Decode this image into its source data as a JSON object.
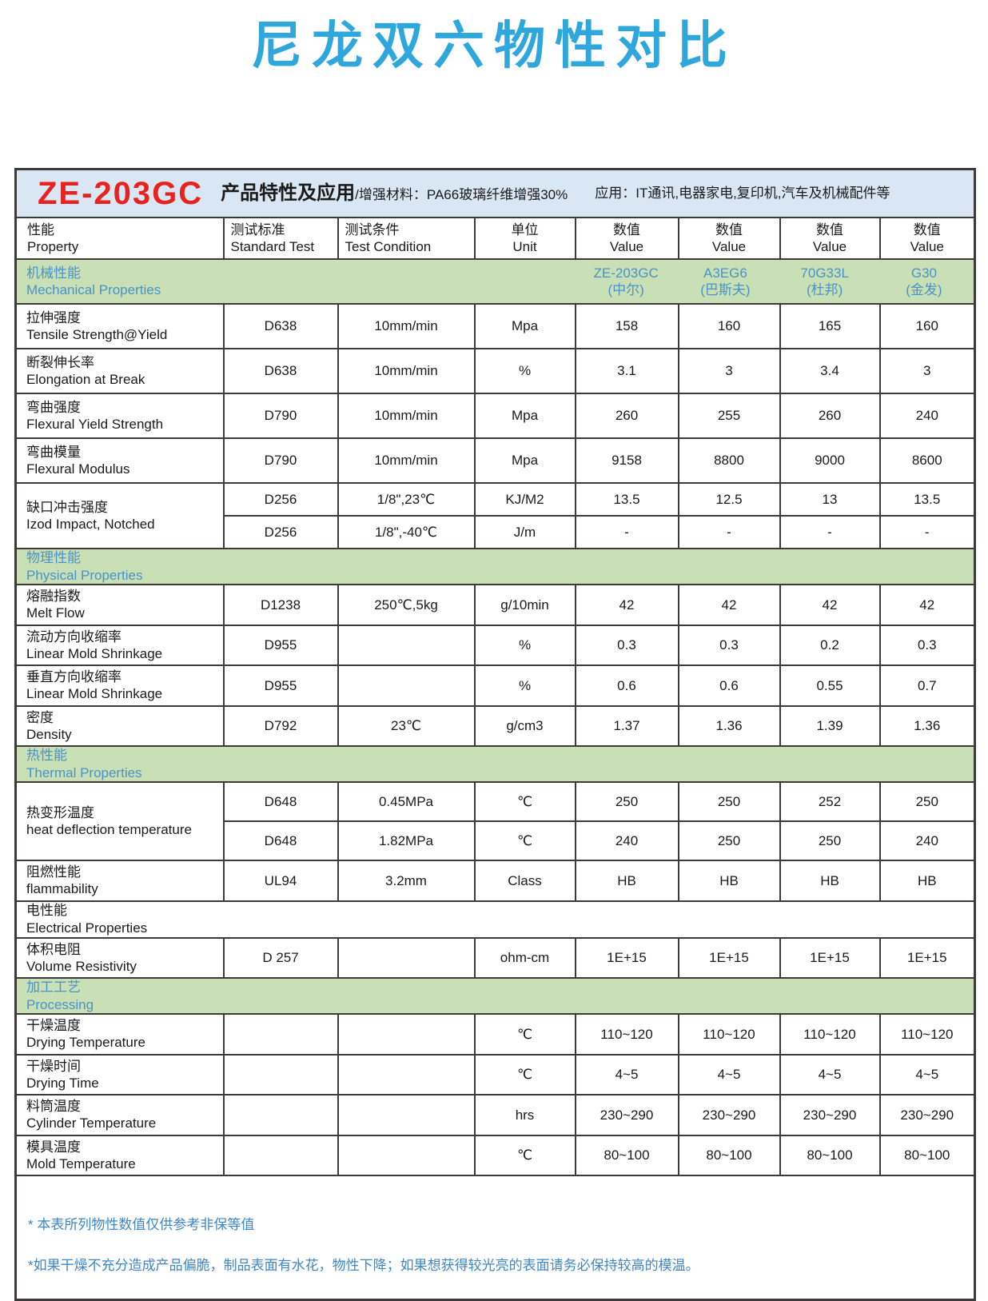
{
  "colors": {
    "title_blue": "#2ea7dc",
    "product_code_red": "#e8231f",
    "product_band_blue_bg": "#d9e6f4",
    "section_band_green_bg": "#c9dfb5",
    "section_text_blue": "#4a93c8",
    "note_text_blue": "#3f86c4",
    "grid_border": "#3e3a39"
  },
  "page": {
    "title": "尼龙双六物性对比"
  },
  "product_header": {
    "code": "ZE-203GC",
    "feature_label": "产品特性及应用",
    "feature_detail": "/增强材料：PA66玻璃纤维增强30%",
    "application": "应用：IT通讯,电器家电,复印机,汽车及机械配件等"
  },
  "table": {
    "columns": [
      {
        "zh": "性能",
        "en": "Property"
      },
      {
        "zh": "测试标准",
        "en": "Standard Test"
      },
      {
        "zh": "测试条件",
        "en": "Test Condition"
      },
      {
        "zh": "单位",
        "en": "Unit"
      },
      {
        "zh": "数值",
        "en": "Value"
      },
      {
        "zh": "数值",
        "en": "Value"
      },
      {
        "zh": "数值",
        "en": "Value"
      },
      {
        "zh": "数值",
        "en": "Value"
      }
    ],
    "brands": [
      {
        "name": "ZE-203GC",
        "maker": "(中尔)"
      },
      {
        "name": "A3EG6",
        "maker": "(巴斯夫)"
      },
      {
        "name": "70G33L",
        "maker": "(杜邦)"
      },
      {
        "name": "G30",
        "maker": "(金发)"
      }
    ],
    "sections": [
      {
        "id": "mechanical",
        "zh": "机械性能",
        "en": "Mechanical Properties",
        "style": "green",
        "show_brands": true,
        "rows": [
          {
            "prop_zh": "拉伸强度",
            "prop_en": "Tensile Strength@Yield",
            "std": "D638",
            "cond": "10mm/min",
            "unit": "Mpa",
            "values": [
              "158",
              "160",
              "165",
              "160"
            ]
          },
          {
            "prop_zh": "断裂伸长率",
            "prop_en": "Elongation at Break",
            "std": "D638",
            "cond": "10mm/min",
            "unit": "%",
            "values": [
              "3.1",
              "3",
              "3.4",
              "3"
            ]
          },
          {
            "prop_zh": "弯曲强度",
            "prop_en": "Flexural Yield Strength",
            "std": "D790",
            "cond": "10mm/min",
            "unit": "Mpa",
            "values": [
              "260",
              "255",
              "260",
              "240"
            ]
          },
          {
            "prop_zh": "弯曲模量",
            "prop_en": "Flexural Modulus",
            "std": "D790",
            "cond": "10mm/min",
            "unit": "Mpa",
            "values": [
              "9158",
              "8800",
              "9000",
              "8600"
            ]
          },
          {
            "prop_zh": "缺口冲击强度",
            "prop_en": "Izod Impact, Notched",
            "subrows": [
              {
                "std": "D256",
                "cond": "1/8\",23℃",
                "unit": "KJ/M2",
                "values": [
                  "13.5",
                  "12.5",
                  "13",
                  "13.5"
                ]
              },
              {
                "std": "D256",
                "cond": "1/8\",-40℃",
                "unit": "J/m",
                "values": [
                  "-",
                  "-",
                  "-",
                  "-"
                ]
              }
            ]
          }
        ]
      },
      {
        "id": "physical",
        "zh": "物理性能",
        "en": "Physical Properties",
        "style": "green",
        "show_brands": false,
        "rows": [
          {
            "prop_zh": "熔融指数",
            "prop_en": "Melt Flow",
            "std": "D1238",
            "cond": "250℃,5kg",
            "unit": "g/10min",
            "values": [
              "42",
              "42",
              "42",
              "42"
            ]
          },
          {
            "prop_zh": "流动方向收缩率",
            "prop_en": "Linear Mold Shrinkage",
            "std": "D955",
            "cond": "",
            "unit": "%",
            "values": [
              "0.3",
              "0.3",
              "0.2",
              "0.3"
            ]
          },
          {
            "prop_zh": "垂直方向收缩率",
            "prop_en": "Linear Mold Shrinkage",
            "std": "D955",
            "cond": "",
            "unit": "%",
            "values": [
              "0.6",
              "0.6",
              "0.55",
              "0.7"
            ]
          },
          {
            "prop_zh": "密度",
            "prop_en": "Density",
            "std": "D792",
            "cond": "23℃",
            "unit": "g/cm3",
            "values": [
              "1.37",
              "1.36",
              "1.39",
              "1.36"
            ]
          }
        ]
      },
      {
        "id": "thermal",
        "zh": "热性能",
        "en": "Thermal Properties",
        "style": "green",
        "show_brands": false,
        "rows": [
          {
            "prop_zh": "热变形温度",
            "prop_en": "heat deflection temperature",
            "subrows": [
              {
                "std": "D648",
                "cond": "0.45MPa",
                "unit": "℃",
                "values": [
                  "250",
                  "250",
                  "252",
                  "250"
                ]
              },
              {
                "std": "D648",
                "cond": "1.82MPa",
                "unit": "℃",
                "values": [
                  "240",
                  "250",
                  "250",
                  "240"
                ]
              }
            ]
          },
          {
            "prop_zh": "阻燃性能",
            "prop_en": "flammability",
            "std": "UL94",
            "cond": "3.2mm",
            "unit": "Class",
            "values": [
              "HB",
              "HB",
              "HB",
              "HB"
            ]
          }
        ]
      },
      {
        "id": "electrical",
        "zh": "电性能",
        "en": "Electrical Properties",
        "style": "plain",
        "show_brands": false,
        "rows": [
          {
            "prop_zh": "体积电阻",
            "prop_en": "Volume Resistivity",
            "std": "D 257",
            "cond": "",
            "unit": "ohm-cm",
            "values": [
              "1E+15",
              "1E+15",
              "1E+15",
              "1E+15"
            ]
          }
        ]
      },
      {
        "id": "processing",
        "zh": "加工工艺",
        "en": "Processing",
        "style": "green",
        "show_brands": false,
        "rows": [
          {
            "prop_zh": "干燥温度",
            "prop_en": "Drying Temperature",
            "std": "",
            "cond": "",
            "unit": "℃",
            "values": [
              "110~120",
              "110~120",
              "110~120",
              "110~120"
            ]
          },
          {
            "prop_zh": "干燥时间",
            "prop_en": "Drying Time",
            "std": "",
            "cond": "",
            "unit": "℃",
            "values": [
              "4~5",
              "4~5",
              "4~5",
              "4~5"
            ]
          },
          {
            "prop_zh": "料筒温度",
            "prop_en": "Cylinder Temperature",
            "std": "",
            "cond": "",
            "unit": "hrs",
            "values": [
              "230~290",
              "230~290",
              "230~290",
              "230~290"
            ]
          },
          {
            "prop_zh": "模具温度",
            "prop_en": "Mold Temperature",
            "std": "",
            "cond": "",
            "unit": "℃",
            "values": [
              "80~100",
              "80~100",
              "80~100",
              "80~100"
            ]
          }
        ]
      }
    ]
  },
  "notes": [
    "* 本表所列物性数值仅供参考非保等值",
    "*如果干燥不充分造成产品偏脆，制品表面有水花，物性下降；如果想获得较光亮的表面请务必保持较高的模温。"
  ]
}
